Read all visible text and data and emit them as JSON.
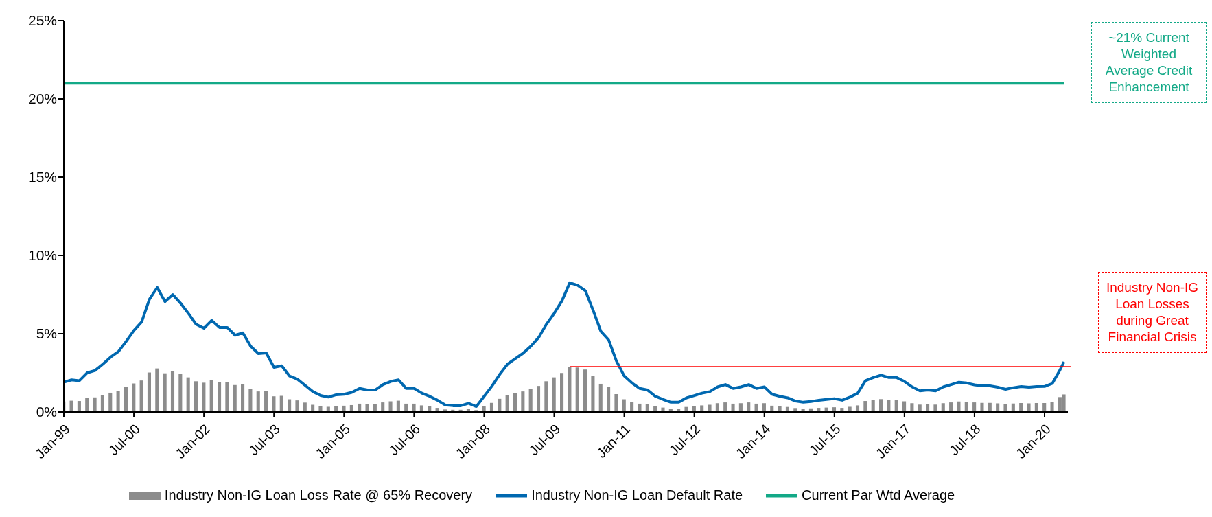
{
  "chart_data": {
    "type": "bar",
    "x": [
      "1999-01",
      "1999-03",
      "1999-05",
      "1999-07",
      "1999-09",
      "1999-11",
      "2000-01",
      "2000-03",
      "2000-05",
      "2000-07",
      "2000-09",
      "2000-11",
      "2001-01",
      "2001-03",
      "2001-05",
      "2001-07",
      "2001-09",
      "2001-11",
      "2002-01",
      "2002-03",
      "2002-05",
      "2002-07",
      "2002-09",
      "2002-11",
      "2003-01",
      "2003-03",
      "2003-05",
      "2003-07",
      "2003-09",
      "2003-11",
      "2004-01",
      "2004-03",
      "2004-05",
      "2004-07",
      "2004-09",
      "2004-11",
      "2005-01",
      "2005-03",
      "2005-05",
      "2005-07",
      "2005-09",
      "2005-11",
      "2006-01",
      "2006-03",
      "2006-05",
      "2006-07",
      "2006-09",
      "2006-11",
      "2007-01",
      "2007-03",
      "2007-05",
      "2007-07",
      "2007-09",
      "2007-11",
      "2008-01",
      "2008-03",
      "2008-05",
      "2008-07",
      "2008-09",
      "2008-11",
      "2009-01",
      "2009-03",
      "2009-05",
      "2009-07",
      "2009-09",
      "2009-11",
      "2010-01",
      "2010-03",
      "2010-05",
      "2010-07",
      "2010-09",
      "2010-11",
      "2011-01",
      "2011-03",
      "2011-05",
      "2011-07",
      "2011-09",
      "2011-11",
      "2012-01",
      "2012-03",
      "2012-05",
      "2012-07",
      "2012-09",
      "2012-11",
      "2013-01",
      "2013-03",
      "2013-05",
      "2013-07",
      "2013-09",
      "2013-11",
      "2014-01",
      "2014-03",
      "2014-05",
      "2014-07",
      "2014-09",
      "2014-11",
      "2015-01",
      "2015-03",
      "2015-05",
      "2015-07",
      "2015-09",
      "2015-11",
      "2016-01",
      "2016-03",
      "2016-05",
      "2016-07",
      "2016-09",
      "2016-11",
      "2017-01",
      "2017-03",
      "2017-05",
      "2017-07",
      "2017-09",
      "2017-11",
      "2018-01",
      "2018-03",
      "2018-05",
      "2018-07",
      "2018-09",
      "2018-11",
      "2019-01",
      "2019-03",
      "2019-05",
      "2019-07",
      "2019-09",
      "2019-11",
      "2020-01",
      "2020-03",
      "2020-05",
      "2020-06"
    ],
    "series": [
      {
        "name": "Industry Non-IG Loan Loss Rate @ 65% Recovery",
        "color": "#8c8c8c",
        "values": [
          0.67,
          0.72,
          0.7,
          0.88,
          0.93,
          1.07,
          1.23,
          1.35,
          1.58,
          1.82,
          2.01,
          2.52,
          2.78,
          2.47,
          2.63,
          2.43,
          2.21,
          1.96,
          1.87,
          2.05,
          1.89,
          1.89,
          1.72,
          1.77,
          1.47,
          1.31,
          1.32,
          1.0,
          1.03,
          0.81,
          0.74,
          0.6,
          0.46,
          0.37,
          0.33,
          0.39,
          0.4,
          0.44,
          0.53,
          0.49,
          0.49,
          0.61,
          0.68,
          0.72,
          0.53,
          0.53,
          0.42,
          0.35,
          0.26,
          0.16,
          0.14,
          0.14,
          0.19,
          0.12,
          0.35,
          0.58,
          0.84,
          1.07,
          1.19,
          1.31,
          1.47,
          1.66,
          1.96,
          2.21,
          2.49,
          2.89,
          2.84,
          2.71,
          2.28,
          1.8,
          1.61,
          1.14,
          0.81,
          0.65,
          0.53,
          0.49,
          0.35,
          0.28,
          0.22,
          0.22,
          0.32,
          0.37,
          0.42,
          0.46,
          0.56,
          0.61,
          0.53,
          0.56,
          0.61,
          0.53,
          0.56,
          0.4,
          0.35,
          0.32,
          0.25,
          0.22,
          0.23,
          0.26,
          0.28,
          0.3,
          0.26,
          0.33,
          0.42,
          0.7,
          0.77,
          0.82,
          0.77,
          0.77,
          0.68,
          0.56,
          0.47,
          0.49,
          0.47,
          0.56,
          0.61,
          0.67,
          0.65,
          0.61,
          0.58,
          0.58,
          0.55,
          0.51,
          0.54,
          0.57,
          0.55,
          0.57,
          0.57,
          0.64,
          0.95,
          1.12
        ]
      },
      {
        "name": "Industry Non-IG Loan Default Rate",
        "type": "line",
        "color": "#0068b0",
        "values": [
          1.9,
          2.05,
          2.0,
          2.5,
          2.65,
          3.05,
          3.5,
          3.85,
          4.5,
          5.2,
          5.75,
          7.2,
          7.95,
          7.05,
          7.5,
          6.95,
          6.3,
          5.6,
          5.35,
          5.85,
          5.4,
          5.4,
          4.9,
          5.05,
          4.2,
          3.73,
          3.77,
          2.85,
          2.95,
          2.3,
          2.1,
          1.7,
          1.3,
          1.05,
          0.95,
          1.1,
          1.13,
          1.25,
          1.5,
          1.4,
          1.4,
          1.75,
          1.95,
          2.05,
          1.5,
          1.5,
          1.2,
          1.0,
          0.75,
          0.45,
          0.4,
          0.4,
          0.55,
          0.35,
          1.0,
          1.65,
          2.4,
          3.05,
          3.4,
          3.75,
          4.2,
          4.75,
          5.6,
          6.3,
          7.1,
          8.25,
          8.1,
          7.75,
          6.5,
          5.15,
          4.6,
          3.25,
          2.3,
          1.85,
          1.5,
          1.4,
          1.0,
          0.8,
          0.62,
          0.62,
          0.9,
          1.05,
          1.2,
          1.3,
          1.6,
          1.75,
          1.5,
          1.6,
          1.75,
          1.5,
          1.6,
          1.13,
          1.0,
          0.9,
          0.7,
          0.62,
          0.67,
          0.75,
          0.8,
          0.85,
          0.75,
          0.95,
          1.2,
          2.0,
          2.2,
          2.35,
          2.2,
          2.2,
          1.95,
          1.6,
          1.35,
          1.4,
          1.35,
          1.6,
          1.75,
          1.9,
          1.85,
          1.73,
          1.67,
          1.67,
          1.58,
          1.45,
          1.55,
          1.62,
          1.58,
          1.62,
          1.63,
          1.82,
          2.7,
          3.2
        ]
      },
      {
        "name": "Current Par Wtd Average",
        "type": "line",
        "color": "#13a987",
        "x": [
          "1999-01",
          "2020-06"
        ],
        "values": [
          21,
          21
        ]
      }
    ],
    "xlim": [
      "1999-01",
      "2020-07"
    ],
    "xticks": [
      {
        "value": "1999-01",
        "label": "Jan-99"
      },
      {
        "value": "2000-07",
        "label": "Jul-00"
      },
      {
        "value": "2002-01",
        "label": "Jan-02"
      },
      {
        "value": "2003-07",
        "label": "Jul-03"
      },
      {
        "value": "2005-01",
        "label": "Jan-05"
      },
      {
        "value": "2006-07",
        "label": "Jul-06"
      },
      {
        "value": "2008-01",
        "label": "Jan-08"
      },
      {
        "value": "2009-07",
        "label": "Jul-09"
      },
      {
        "value": "2011-01",
        "label": "Jan-11"
      },
      {
        "value": "2012-07",
        "label": "Jul-12"
      },
      {
        "value": "2014-01",
        "label": "Jan-14"
      },
      {
        "value": "2015-07",
        "label": "Jul-15"
      },
      {
        "value": "2017-01",
        "label": "Jan-17"
      },
      {
        "value": "2018-07",
        "label": "Jul-18"
      },
      {
        "value": "2020-01",
        "label": "Jan-20"
      }
    ],
    "ylim": [
      0,
      25
    ],
    "yticks": [
      {
        "value": 0,
        "label": "0%"
      },
      {
        "value": 5,
        "label": "5%"
      },
      {
        "value": 10,
        "label": "10%"
      },
      {
        "value": 15,
        "label": "15%"
      },
      {
        "value": 20,
        "label": "20%"
      },
      {
        "value": 25,
        "label": "25%"
      }
    ],
    "ref_lines": [
      {
        "axis": "y",
        "value": 2.9,
        "label": "Industry Non-IG Loan Losses during Great Financial Crisis",
        "color": "#ff0000"
      }
    ],
    "annotations": [
      "~21% Current Weighted Average Credit Enhancement"
    ],
    "grid": false,
    "legend": "bottom"
  }
}
